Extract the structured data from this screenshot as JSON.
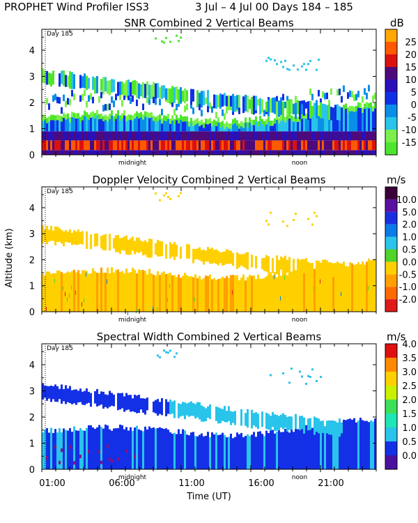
{
  "header": {
    "title_main": "PROPHET Wind Profiler ISS3",
    "title_dates": "3 Jul –  4 Jul 00 Days 184 – 185"
  },
  "shared": {
    "ylabel": "Altitude (km)",
    "xlabel": "Time (UT)",
    "day_label": "Day 185",
    "midnight_label": "midnight",
    "noon_label": "noon",
    "yticks": [
      "0",
      "1",
      "2",
      "3",
      "4"
    ],
    "time_ticks": [
      "01:00",
      "06:00",
      "11:00",
      "16:00",
      "21:00"
    ]
  },
  "chart_data": [
    {
      "type": "heatmap",
      "title": "SNR Combined 2 Vertical Beams",
      "unit": "dB",
      "xlabel": "Time (UT)",
      "ylabel": "Altitude (km)",
      "ylim": [
        0,
        4.8
      ],
      "xlim_hours": [
        0,
        24
      ],
      "colorbar": {
        "labels": [
          "-15",
          "-10",
          "-5",
          "0",
          "5",
          "10",
          "15",
          "20",
          "25"
        ],
        "colors": [
          "#4ee62c",
          "#7cf04a",
          "#29c4ea",
          "#0a8fe8",
          "#1030e6",
          "#2a10b8",
          "#4e0a7a",
          "#dd1010",
          "#ff5a00",
          "#ffa800"
        ]
      }
    },
    {
      "type": "heatmap",
      "title": "Doppler Velocity Combined 2 Vertical Beams",
      "unit": "m/s",
      "xlabel": "Time (UT)",
      "ylabel": "Altitude (km)",
      "ylim": [
        0,
        4.8
      ],
      "xlim_hours": [
        0,
        24
      ],
      "colorbar": {
        "labels": [
          "-2.0",
          "-1.0",
          "-0.5",
          "0.0",
          "0.5",
          "1.0",
          "2.0",
          "5.0",
          "10.0"
        ],
        "colors": [
          "#e01818",
          "#ff6a00",
          "#ffa000",
          "#ffd000",
          "#4ed42a",
          "#29c4ea",
          "#0a7ae8",
          "#1a30e0",
          "#5a10a0",
          "#3a003a"
        ]
      }
    },
    {
      "type": "heatmap",
      "title": "Spectral Width Combined 2 Vertical Beams",
      "unit": "m/s",
      "xlabel": "Time (UT)",
      "ylabel": "Altitude (km)",
      "ylim": [
        0,
        4.8
      ],
      "xlim_hours": [
        0,
        24
      ],
      "colorbar": {
        "labels": [
          "0.0",
          "0.5",
          "1.0",
          "1.5",
          "2.0",
          "2.5",
          "3.0",
          "3.5",
          "4.0"
        ],
        "colors": [
          "#4a10a0",
          "#1430e6",
          "#29c4ea",
          "#1ee6b4",
          "#3ee05a",
          "#c8f000",
          "#ffd000",
          "#ff8a00",
          "#e01010"
        ]
      }
    }
  ]
}
